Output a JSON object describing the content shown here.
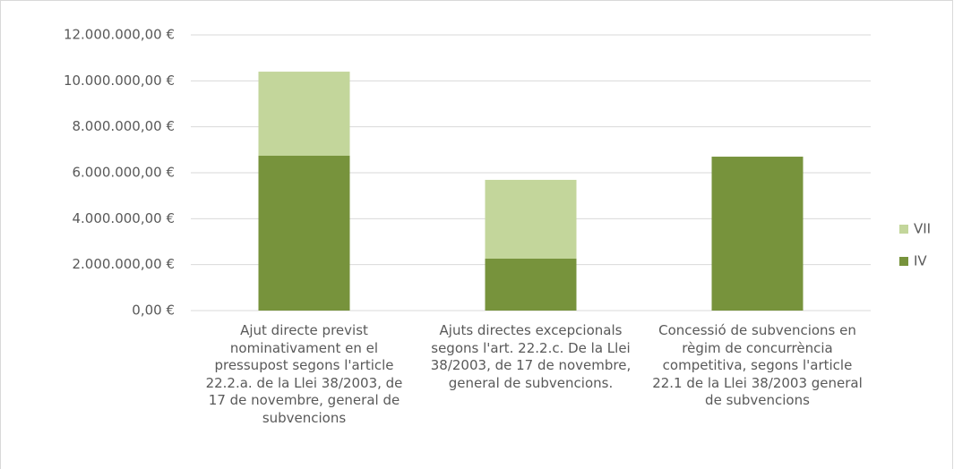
{
  "chart_data": {
    "type": "stacked_bar",
    "categories": [
      "Ajut directe previst nominativament en el pressupost segons l'article 22.2.a. de la Llei 38/2003, de 17 de novembre, general de subvencions",
      "Ajuts directes excepcionals segons l'art. 22.2.c. De la Llei 38/2003, de 17 de novembre, general de subvencions.",
      "Concessió de subvencions en règim de concurrència competitiva, segons l'article 22.1 de la Llei 38/2003 general de subvencions"
    ],
    "series": [
      {
        "name": "IV",
        "color": "#77933c",
        "values": [
          6740000,
          2260000,
          6700000
        ]
      },
      {
        "name": "VII",
        "color": "#c3d69b",
        "values": [
          3660000,
          3430000,
          0
        ]
      }
    ],
    "ylim": [
      0,
      12000000
    ],
    "yticks": [
      {
        "value": 0,
        "label": "0,00 €"
      },
      {
        "value": 2000000,
        "label": "2.000.000,00 €"
      },
      {
        "value": 4000000,
        "label": "4.000.000,00 €"
      },
      {
        "value": 6000000,
        "label": "6.000.000,00 €"
      },
      {
        "value": 8000000,
        "label": "8.000.000,00 €"
      },
      {
        "value": 10000000,
        "label": "10.000.000,00 €"
      },
      {
        "value": 12000000,
        "label": "12.000.000,00 €"
      }
    ],
    "grid": true,
    "legend": "right"
  }
}
